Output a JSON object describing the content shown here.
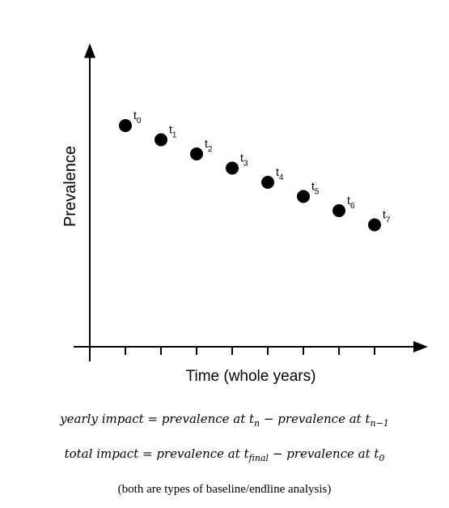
{
  "chart_data": {
    "type": "scatter",
    "xlabel": "Time (whole years)",
    "ylabel": "Prevalence",
    "points": [
      {
        "label": "t",
        "sub": "0",
        "x": 1,
        "y": 0.78
      },
      {
        "label": "t",
        "sub": "1",
        "x": 2,
        "y": 0.73
      },
      {
        "label": "t",
        "sub": "2",
        "x": 3,
        "y": 0.68
      },
      {
        "label": "t",
        "sub": "3",
        "x": 4,
        "y": 0.63
      },
      {
        "label": "t",
        "sub": "4",
        "x": 5,
        "y": 0.58
      },
      {
        "label": "t",
        "sub": "5",
        "x": 6,
        "y": 0.53
      },
      {
        "label": "t",
        "sub": "6",
        "x": 7,
        "y": 0.48
      },
      {
        "label": "t",
        "sub": "7",
        "x": 8,
        "y": 0.43
      }
    ],
    "x_ticks": [
      1,
      2,
      3,
      4,
      5,
      6,
      7,
      8
    ],
    "xlim": [
      0,
      9.5
    ],
    "ylim": [
      0,
      1.07
    ],
    "grid": false,
    "legend": "none"
  },
  "formulas": {
    "yearly_lhs": "yearly impact",
    "eq": "=",
    "minus": "−",
    "yearly_a": "prevalence at t",
    "yearly_a_sub": "n",
    "yearly_b": "prevalence at t",
    "yearly_b_sub": "n−1",
    "total_lhs": "total impact",
    "total_a": "prevalence at t",
    "total_a_sub": "final",
    "total_b": "prevalence at t",
    "total_b_sub": "0"
  },
  "note": "(both are types of baseline/endline analysis)"
}
